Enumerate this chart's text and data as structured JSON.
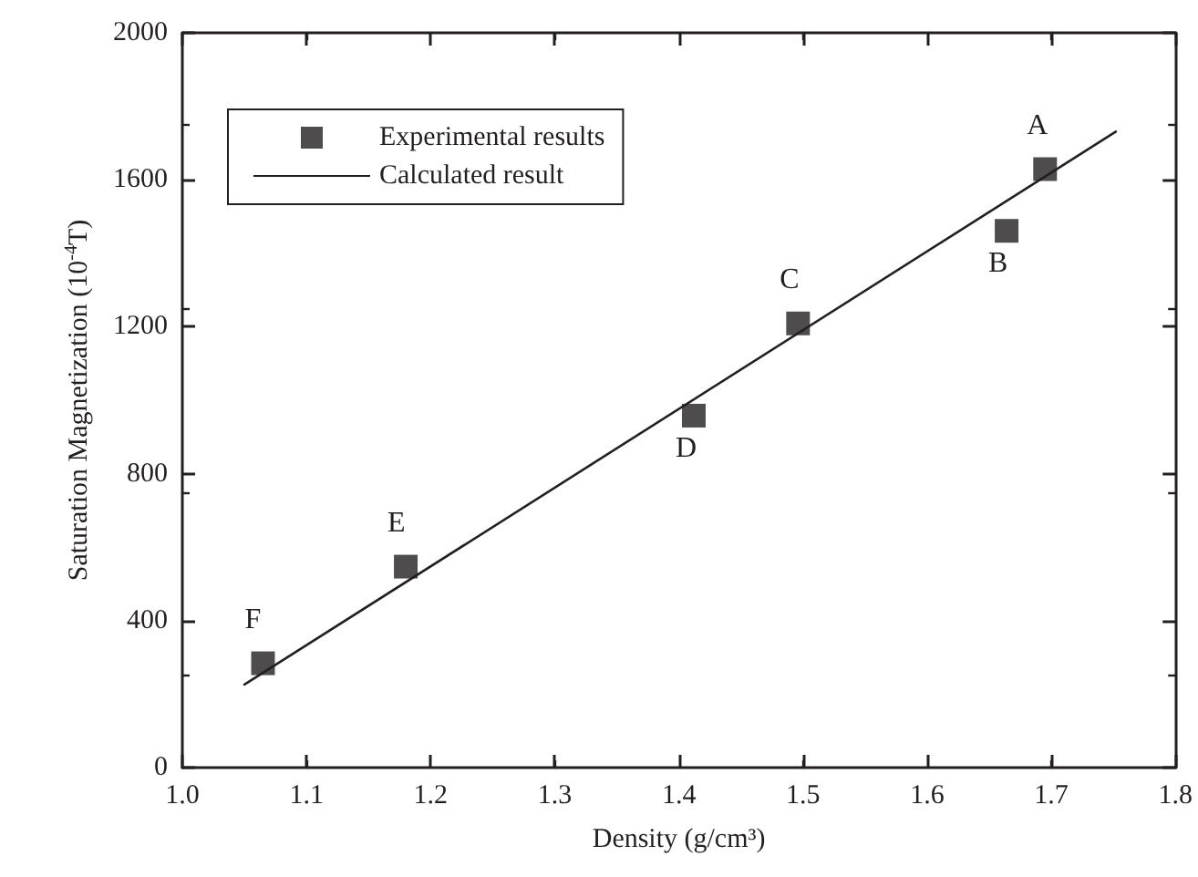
{
  "chart_data": {
    "type": "scatter",
    "xlabel": "Density (g/cm³)",
    "ylabel": "Saturation Magnetization (10$^{-4}$T)",
    "xlim": [
      1.0,
      1.8
    ],
    "xticks": [
      {
        "value": 1,
        "label": "1.0"
      },
      1.1,
      1.2,
      1.3,
      1.4,
      1.5,
      1.6,
      1.7,
      {
        "value": 1.8,
        "label": "1.8"
      }
    ],
    "ylim": [
      0,
      2000
    ],
    "yticks": [
      0,
      400,
      800,
      1200,
      1600,
      2000
    ],
    "legend": "top left",
    "grid": false,
    "marker": "square",
    "series": [
      {
        "name": "Experimental results",
        "color": "#231f20",
        "x": [
          1.065,
          1.18,
          1.412,
          1.496,
          1.664,
          1.695
        ],
        "values": [
          284,
          547,
          958,
          1209,
          1461,
          1629
        ]
      },
      {
        "name": "Calculated result",
        "type": "line",
        "color": "#231f20",
        "line_style": "solid",
        "marker": "none",
        "x": [
          1.05,
          1.752
        ],
        "values": [
          226,
          1731
        ]
      }
    ],
    "annotations": [
      {
        "text": "A",
        "x": 1.695,
        "y": 1629
      },
      {
        "text": "B",
        "x": 1.664,
        "y": 1461
      },
      {
        "text": "C",
        "x": 1.496,
        "y": 1209
      },
      {
        "text": "D",
        "x": 1.412,
        "y": 958
      },
      {
        "text": "E",
        "x": 1.18,
        "y": 547
      },
      {
        "text": "F",
        "x": 1.065,
        "y": 284
      }
    ]
  }
}
